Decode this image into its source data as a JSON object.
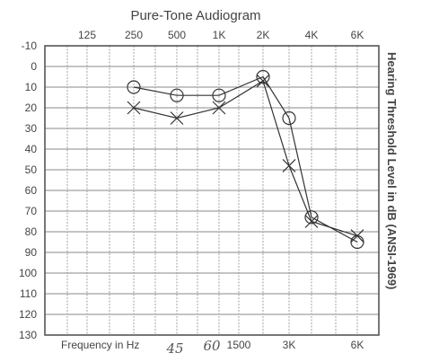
{
  "chart_data": {
    "type": "line",
    "title": "Pure-Tone Audiogram",
    "xlabel": "Frequency in Hz",
    "ylabel": "Hearing Threshold Level in dB (ANSI-1969)",
    "ylim": [
      -10,
      130
    ],
    "y_ticks": [
      "-10",
      "0",
      "10",
      "20",
      "30",
      "40",
      "50",
      "60",
      "70",
      "80",
      "90",
      "100",
      "110",
      "120",
      "130"
    ],
    "x_ticks_top": [
      "125",
      "250",
      "500",
      "1K",
      "2K",
      "4K",
      "6K"
    ],
    "x_ticks_bottom": [
      "1500",
      "3K",
      "6K"
    ],
    "grid": true,
    "series": [
      {
        "marker": "circle",
        "color": "#333333",
        "x": [
          "250",
          "500",
          "1K",
          "2K",
          "3K",
          "4K",
          "6K"
        ],
        "values": [
          10,
          14,
          14,
          5,
          25,
          73,
          85
        ]
      },
      {
        "marker": "x",
        "color": "#333333",
        "x": [
          "250",
          "500",
          "1K",
          "2K",
          "3K",
          "4K",
          "6K"
        ],
        "values": [
          20,
          25,
          20,
          7,
          48,
          75,
          82
        ]
      }
    ],
    "handwritten_annotations": [
      "45",
      "60"
    ]
  }
}
